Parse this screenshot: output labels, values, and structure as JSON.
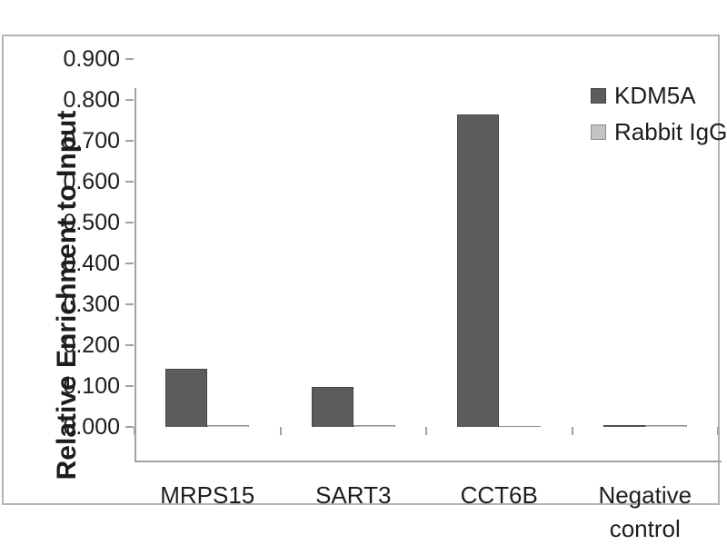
{
  "chart_data": {
    "type": "bar",
    "title": "",
    "xlabel": "",
    "ylabel": "Relative Enrichment to Input",
    "categories": [
      "MRPS15",
      "SART3",
      "CCT6B",
      "Negative control"
    ],
    "series": [
      {
        "name": "KDM5A",
        "color": "#5c5c5c",
        "border_color": "#454545",
        "values": [
          0.143,
          0.098,
          0.765,
          0.004
        ]
      },
      {
        "name": "Rabbit IgG",
        "color": "#c3c3c3",
        "border_color": "#8e8e8e",
        "values": [
          0.004,
          0.004,
          0.002,
          0.004
        ]
      }
    ],
    "ylim": [
      0,
      0.9
    ],
    "ytick_step": 0.1,
    "yticks": [
      "0.000",
      "0.100",
      "0.200",
      "0.300",
      "0.400",
      "0.500",
      "0.600",
      "0.700",
      "0.800",
      "0.900"
    ],
    "grid": false,
    "legend_position": "top-right",
    "legend_entries": [
      "KDM5A",
      "Rabbit IgG"
    ]
  },
  "colors": {
    "axis": "#a2a2a2",
    "frame_border": "#b3b3b3",
    "text": "#1d1d1d",
    "background": "#ffffff"
  }
}
